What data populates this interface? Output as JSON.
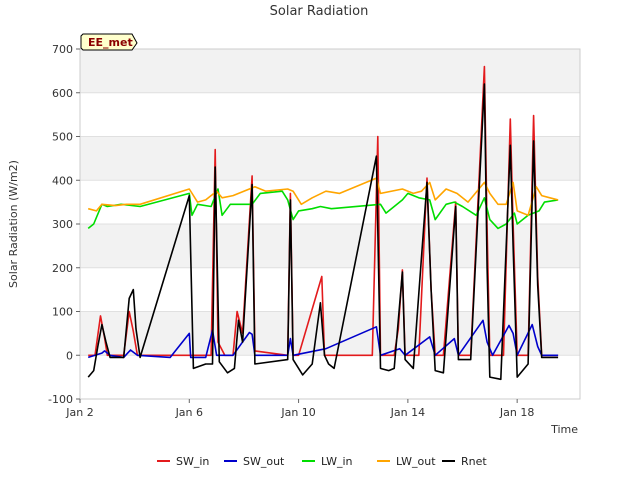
{
  "chart_data": {
    "type": "line",
    "title": "Solar Radiation",
    "xlabel": "Time",
    "ylabel": "Solar Radiation (W/m2)",
    "site_label": "EE_met",
    "xlim": [
      0,
      18.3
    ],
    "ylim": [
      -100,
      700
    ],
    "x_unit": "days since Jan 2",
    "x_ticks": [
      {
        "value": 0,
        "label": "Jan 2"
      },
      {
        "value": 4,
        "label": "Jan 6"
      },
      {
        "value": 8,
        "label": "Jan 10"
      },
      {
        "value": 12,
        "label": "Jan 14"
      },
      {
        "value": 16,
        "label": "Jan 18"
      }
    ],
    "y_ticks": [
      -100,
      0,
      100,
      200,
      300,
      400,
      500,
      600,
      700
    ],
    "grid": "horizontal bands",
    "legend_position": "bottom",
    "series": [
      {
        "name": "SW_in",
        "color": "#e31a1c",
        "points": [
          [
            0.3,
            0
          ],
          [
            0.55,
            0
          ],
          [
            0.75,
            90
          ],
          [
            0.9,
            40
          ],
          [
            1.0,
            0
          ],
          [
            1.6,
            0
          ],
          [
            1.8,
            100
          ],
          [
            1.95,
            55
          ],
          [
            2.1,
            0
          ],
          [
            4.0,
            0
          ],
          [
            4.4,
            0
          ],
          [
            4.8,
            0
          ],
          [
            4.95,
            470
          ],
          [
            5.05,
            30
          ],
          [
            5.3,
            0
          ],
          [
            5.6,
            0
          ],
          [
            5.75,
            100
          ],
          [
            5.95,
            50
          ],
          [
            6.3,
            410
          ],
          [
            6.4,
            10
          ],
          [
            7.6,
            0
          ],
          [
            7.7,
            370
          ],
          [
            7.8,
            0
          ],
          [
            8.0,
            0
          ],
          [
            8.85,
            180
          ],
          [
            8.95,
            0
          ],
          [
            9.15,
            0
          ],
          [
            10.7,
            0
          ],
          [
            10.9,
            500
          ],
          [
            11.0,
            0
          ],
          [
            11.5,
            0
          ],
          [
            11.65,
            60
          ],
          [
            11.8,
            195
          ],
          [
            11.9,
            0
          ],
          [
            12.4,
            0
          ],
          [
            12.7,
            405
          ],
          [
            12.85,
            150
          ],
          [
            13.0,
            0
          ],
          [
            13.3,
            0
          ],
          [
            13.75,
            350
          ],
          [
            13.85,
            0
          ],
          [
            14.3,
            0
          ],
          [
            14.8,
            660
          ],
          [
            14.9,
            290
          ],
          [
            15.0,
            0
          ],
          [
            15.5,
            0
          ],
          [
            15.75,
            540
          ],
          [
            15.85,
            300
          ],
          [
            16.0,
            0
          ],
          [
            16.4,
            0
          ],
          [
            16.6,
            548
          ],
          [
            16.75,
            180
          ],
          [
            16.9,
            0
          ],
          [
            17.5,
            0
          ]
        ]
      },
      {
        "name": "SW_out",
        "color": "#0000cc",
        "points": [
          [
            0.3,
            -5
          ],
          [
            0.8,
            5
          ],
          [
            0.9,
            10
          ],
          [
            1.1,
            0
          ],
          [
            1.6,
            -5
          ],
          [
            1.85,
            12
          ],
          [
            2.1,
            0
          ],
          [
            3.3,
            -5
          ],
          [
            4.0,
            50
          ],
          [
            4.05,
            -5
          ],
          [
            4.6,
            -5
          ],
          [
            4.85,
            57
          ],
          [
            5.0,
            0
          ],
          [
            5.6,
            0
          ],
          [
            6.2,
            52
          ],
          [
            6.3,
            48
          ],
          [
            6.4,
            0
          ],
          [
            7.6,
            0
          ],
          [
            7.7,
            38
          ],
          [
            7.8,
            0
          ],
          [
            9.0,
            15
          ],
          [
            10.85,
            65
          ],
          [
            11.0,
            0
          ],
          [
            11.7,
            15
          ],
          [
            11.9,
            0
          ],
          [
            12.8,
            42
          ],
          [
            13.0,
            0
          ],
          [
            13.7,
            38
          ],
          [
            13.85,
            0
          ],
          [
            14.75,
            80
          ],
          [
            14.9,
            30
          ],
          [
            15.1,
            0
          ],
          [
            15.7,
            68
          ],
          [
            15.85,
            50
          ],
          [
            16.0,
            0
          ],
          [
            16.55,
            70
          ],
          [
            16.75,
            20
          ],
          [
            16.9,
            0
          ],
          [
            17.5,
            0
          ]
        ]
      },
      {
        "name": "LW_in",
        "color": "#00dd00",
        "points": [
          [
            0.3,
            290
          ],
          [
            0.5,
            300
          ],
          [
            0.8,
            345
          ],
          [
            1.0,
            340
          ],
          [
            1.5,
            345
          ],
          [
            2.2,
            340
          ],
          [
            4.0,
            370
          ],
          [
            4.1,
            320
          ],
          [
            4.3,
            345
          ],
          [
            4.8,
            340
          ],
          [
            5.05,
            380
          ],
          [
            5.2,
            320
          ],
          [
            5.5,
            345
          ],
          [
            6.3,
            345
          ],
          [
            6.6,
            370
          ],
          [
            7.4,
            375
          ],
          [
            7.6,
            355
          ],
          [
            7.8,
            310
          ],
          [
            8.0,
            330
          ],
          [
            8.5,
            335
          ],
          [
            8.8,
            340
          ],
          [
            9.2,
            335
          ],
          [
            11.0,
            345
          ],
          [
            11.2,
            325
          ],
          [
            11.8,
            355
          ],
          [
            12.0,
            370
          ],
          [
            12.4,
            360
          ],
          [
            12.8,
            355
          ],
          [
            13.0,
            310
          ],
          [
            13.4,
            345
          ],
          [
            13.7,
            350
          ],
          [
            14.0,
            340
          ],
          [
            14.5,
            320
          ],
          [
            14.8,
            360
          ],
          [
            15.0,
            310
          ],
          [
            15.3,
            290
          ],
          [
            15.6,
            300
          ],
          [
            15.9,
            325
          ],
          [
            16.0,
            300
          ],
          [
            16.4,
            320
          ],
          [
            16.8,
            330
          ],
          [
            17.0,
            350
          ],
          [
            17.5,
            355
          ]
        ]
      },
      {
        "name": "LW_out",
        "color": "#ffa500",
        "points": [
          [
            0.3,
            335
          ],
          [
            0.6,
            330
          ],
          [
            0.8,
            345
          ],
          [
            1.3,
            342
          ],
          [
            1.7,
            345
          ],
          [
            2.2,
            345
          ],
          [
            4.0,
            380
          ],
          [
            4.3,
            350
          ],
          [
            4.6,
            355
          ],
          [
            5.0,
            375
          ],
          [
            5.2,
            360
          ],
          [
            5.6,
            365
          ],
          [
            6.4,
            385
          ],
          [
            6.8,
            375
          ],
          [
            7.6,
            380
          ],
          [
            7.8,
            375
          ],
          [
            8.1,
            345
          ],
          [
            8.5,
            360
          ],
          [
            9.0,
            375
          ],
          [
            9.5,
            370
          ],
          [
            10.85,
            405
          ],
          [
            11.0,
            370
          ],
          [
            11.8,
            380
          ],
          [
            12.2,
            370
          ],
          [
            12.5,
            375
          ],
          [
            12.8,
            395
          ],
          [
            13.0,
            355
          ],
          [
            13.4,
            380
          ],
          [
            13.8,
            370
          ],
          [
            14.2,
            350
          ],
          [
            14.8,
            395
          ],
          [
            15.0,
            370
          ],
          [
            15.3,
            345
          ],
          [
            15.6,
            345
          ],
          [
            15.85,
            395
          ],
          [
            16.0,
            330
          ],
          [
            16.4,
            320
          ],
          [
            16.7,
            385
          ],
          [
            16.9,
            365
          ],
          [
            17.2,
            360
          ],
          [
            17.5,
            355
          ]
        ]
      },
      {
        "name": "Rnet",
        "color": "#000000",
        "points": [
          [
            0.3,
            -50
          ],
          [
            0.5,
            -35
          ],
          [
            0.65,
            20
          ],
          [
            0.8,
            70
          ],
          [
            0.95,
            30
          ],
          [
            1.1,
            -5
          ],
          [
            1.6,
            -5
          ],
          [
            1.8,
            130
          ],
          [
            1.95,
            150
          ],
          [
            2.05,
            60
          ],
          [
            2.2,
            -5
          ],
          [
            4.0,
            365
          ],
          [
            4.15,
            -30
          ],
          [
            4.6,
            -20
          ],
          [
            4.85,
            -20
          ],
          [
            4.95,
            430
          ],
          [
            5.1,
            -15
          ],
          [
            5.4,
            -40
          ],
          [
            5.65,
            -30
          ],
          [
            5.8,
            80
          ],
          [
            5.95,
            30
          ],
          [
            6.3,
            390
          ],
          [
            6.4,
            -20
          ],
          [
            7.6,
            -10
          ],
          [
            7.7,
            355
          ],
          [
            7.8,
            -10
          ],
          [
            8.15,
            -45
          ],
          [
            8.5,
            -20
          ],
          [
            8.8,
            120
          ],
          [
            8.95,
            0
          ],
          [
            9.1,
            -20
          ],
          [
            9.3,
            -30
          ],
          [
            10.85,
            455
          ],
          [
            11.0,
            -30
          ],
          [
            11.3,
            -35
          ],
          [
            11.5,
            -30
          ],
          [
            11.8,
            190
          ],
          [
            11.9,
            -10
          ],
          [
            12.2,
            -30
          ],
          [
            12.7,
            395
          ],
          [
            12.85,
            150
          ],
          [
            13.0,
            -35
          ],
          [
            13.3,
            -40
          ],
          [
            13.75,
            340
          ],
          [
            13.85,
            -10
          ],
          [
            14.3,
            -10
          ],
          [
            14.8,
            620
          ],
          [
            14.9,
            200
          ],
          [
            15.0,
            -50
          ],
          [
            15.4,
            -55
          ],
          [
            15.75,
            480
          ],
          [
            15.85,
            250
          ],
          [
            16.0,
            -50
          ],
          [
            16.4,
            -20
          ],
          [
            16.6,
            490
          ],
          [
            16.75,
            160
          ],
          [
            16.9,
            -5
          ],
          [
            17.5,
            -5
          ]
        ]
      }
    ]
  }
}
